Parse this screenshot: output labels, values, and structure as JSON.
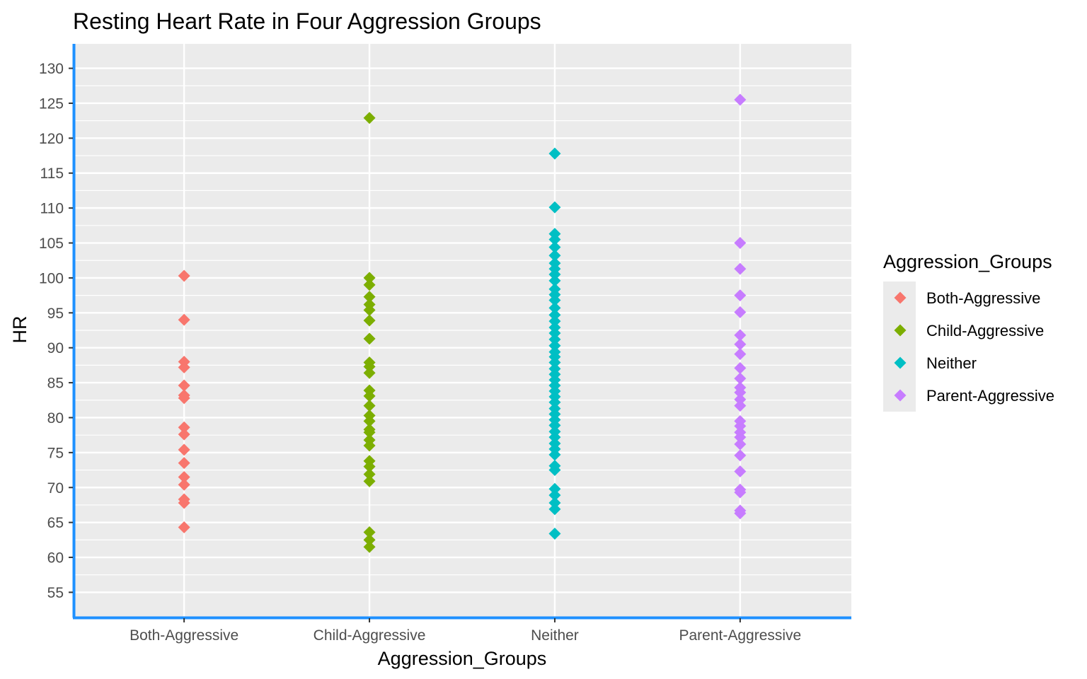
{
  "chart_data": {
    "type": "scatter",
    "title": "Resting Heart Rate in Four Aggression Groups",
    "xlabel": "Aggression_Groups",
    "ylabel": "HR",
    "categories": [
      "Both-Aggressive",
      "Child-Aggressive",
      "Neither",
      "Parent-Aggressive"
    ],
    "ylim": [
      51.5,
      133.5
    ],
    "yticks": [
      55,
      60,
      65,
      70,
      75,
      80,
      85,
      90,
      95,
      100,
      105,
      110,
      115,
      120,
      125,
      130
    ],
    "grid": true,
    "background": "#EBEBEB",
    "axis_line_color": "#1E90FF",
    "marker": "diamond",
    "legend": {
      "title": "Aggression_Groups",
      "position": "right"
    },
    "series": [
      {
        "name": "Both-Aggressive",
        "color": "#F8766D",
        "category": "Both-Aggressive",
        "values": [
          100.3,
          94.0,
          88.0,
          87.2,
          84.6,
          83.2,
          82.8,
          78.6,
          77.6,
          75.4,
          73.5,
          71.5,
          70.4,
          68.3,
          67.8,
          64.3
        ]
      },
      {
        "name": "Child-Aggressive",
        "color": "#7CAE00",
        "category": "Child-Aggressive",
        "values": [
          122.9,
          100.0,
          99.0,
          97.3,
          96.2,
          95.4,
          93.9,
          91.3,
          87.9,
          87.3,
          86.4,
          83.9,
          83.1,
          81.7,
          80.3,
          79.5,
          78.3,
          77.9,
          76.8,
          76.0,
          73.8,
          73.0,
          71.9,
          70.9,
          63.6,
          62.5,
          61.5
        ]
      },
      {
        "name": "Neither",
        "color": "#00BFC4",
        "category": "Neither",
        "values": [
          117.8,
          110.1,
          106.3,
          105.5,
          104.4,
          103.2,
          102.1,
          101.3,
          100.5,
          99.6,
          98.4,
          97.6,
          96.8,
          95.7,
          94.7,
          93.8,
          92.9,
          92.1,
          91.2,
          90.3,
          89.4,
          88.7,
          87.9,
          87.0,
          86.2,
          85.4,
          84.6,
          83.8,
          83.0,
          82.2,
          81.3,
          80.5,
          79.7,
          78.9,
          78.0,
          77.2,
          76.3,
          75.5,
          74.7,
          73.1,
          72.5,
          69.8,
          68.9,
          67.8,
          66.9,
          63.4
        ]
      },
      {
        "name": "Parent-Aggressive",
        "color": "#C77CFF",
        "category": "Parent-Aggressive",
        "values": [
          125.5,
          105.0,
          101.3,
          97.5,
          95.1,
          91.8,
          90.5,
          89.1,
          87.1,
          85.6,
          84.3,
          83.6,
          82.6,
          81.7,
          79.5,
          78.8,
          77.9,
          77.2,
          76.2,
          74.6,
          72.3,
          69.7,
          69.3,
          66.7,
          66.3
        ]
      }
    ]
  }
}
